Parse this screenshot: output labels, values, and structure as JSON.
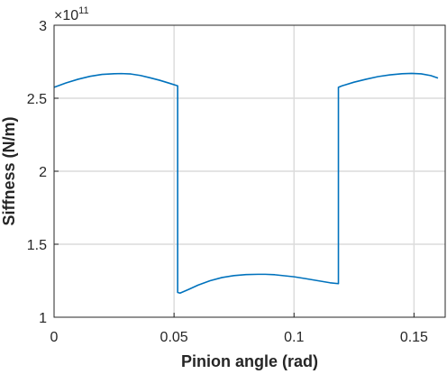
{
  "chart_data": {
    "type": "line",
    "xlabel": "Pinion angle (rad)",
    "ylabel": "Siffness (N/m)",
    "y_multiplier_base": "×10",
    "y_multiplier_exponent": "11",
    "xlim": [
      0,
      0.163
    ],
    "ylim": [
      1,
      3
    ],
    "x_ticks": [
      0,
      0.05,
      0.1,
      0.15
    ],
    "x_tick_labels": [
      "0",
      "0.05",
      "0.1",
      "0.15"
    ],
    "y_ticks": [
      1,
      1.5,
      2,
      2.5,
      3
    ],
    "y_tick_labels": [
      "1",
      "1.5",
      "2",
      "2.5",
      "3"
    ],
    "grid": true,
    "line_color": "#0072BD",
    "series": [
      {
        "x": [
          0,
          0.005,
          0.01,
          0.015,
          0.02,
          0.025,
          0.028,
          0.032,
          0.036,
          0.04,
          0.044,
          0.048,
          0.0515,
          0.0515,
          0.0525,
          0.056,
          0.06,
          0.065,
          0.07,
          0.075,
          0.08,
          0.085,
          0.088,
          0.092,
          0.096,
          0.1,
          0.105,
          0.11,
          0.115,
          0.1185,
          0.1185,
          0.12,
          0.125,
          0.13,
          0.135,
          0.14,
          0.145,
          0.149,
          0.153,
          0.157,
          0.16
        ],
        "y": [
          2.575,
          2.605,
          2.63,
          2.65,
          2.663,
          2.668,
          2.669,
          2.666,
          2.656,
          2.64,
          2.623,
          2.603,
          2.585,
          1.17,
          1.165,
          1.19,
          1.22,
          1.25,
          1.272,
          1.285,
          1.292,
          1.294,
          1.294,
          1.291,
          1.284,
          1.277,
          1.264,
          1.25,
          1.236,
          1.23,
          2.575,
          2.585,
          2.61,
          2.63,
          2.648,
          2.66,
          2.668,
          2.67,
          2.667,
          2.655,
          2.638
        ]
      }
    ]
  }
}
